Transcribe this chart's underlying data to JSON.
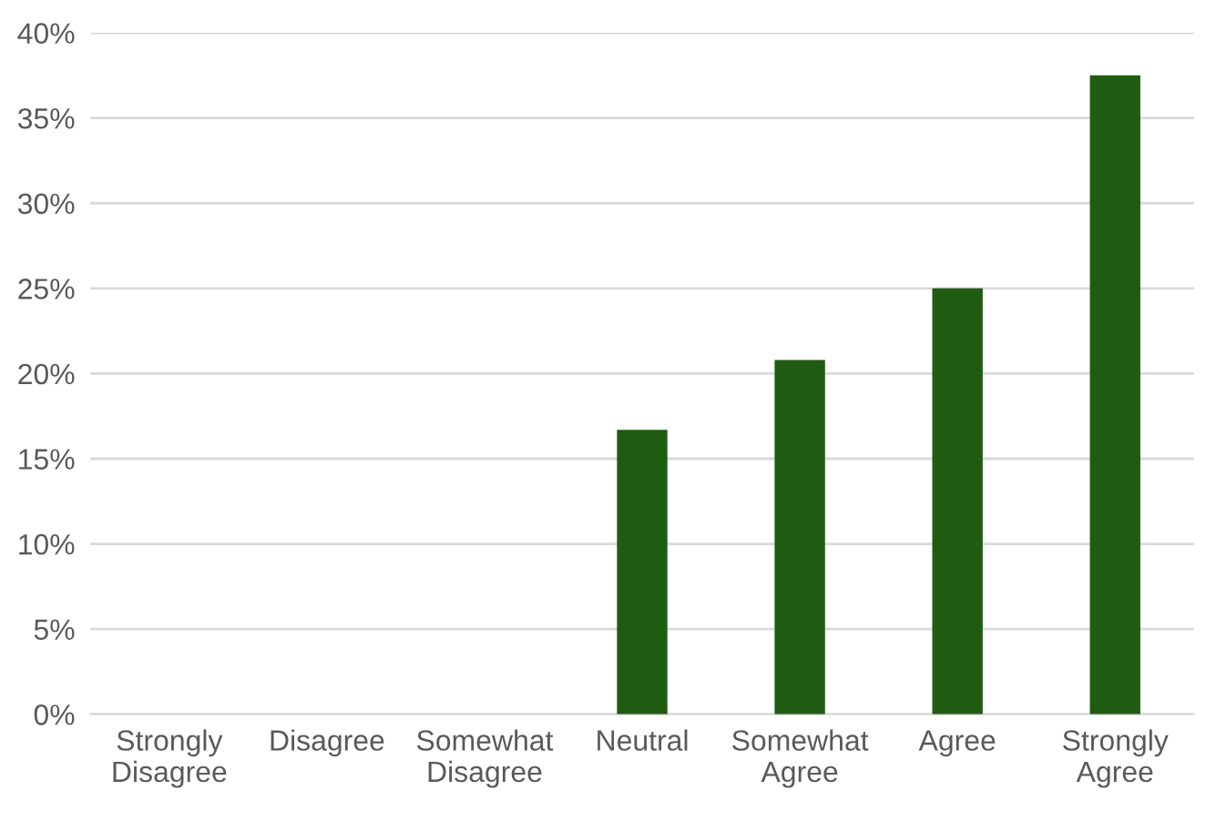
{
  "chart_data": {
    "type": "bar",
    "categories": [
      "Strongly\nDisagree",
      "Disagree",
      "Somewhat\nDisagree",
      "Neutral",
      "Somewhat\nAgree",
      "Agree",
      "Strongly\nAgree"
    ],
    "values": [
      0,
      0,
      0,
      16.7,
      20.8,
      25,
      37.5
    ],
    "color": "#1f5c11",
    "ylim": [
      0,
      40
    ],
    "yticks": [
      {
        "value": 0,
        "label": "0%"
      },
      {
        "value": 5,
        "label": "5%"
      },
      {
        "value": 10,
        "label": "10%"
      },
      {
        "value": 15,
        "label": "15%"
      },
      {
        "value": 20,
        "label": "20%"
      },
      {
        "value": 25,
        "label": "25%"
      },
      {
        "value": 30,
        "label": "30%"
      },
      {
        "value": 35,
        "label": "35%"
      },
      {
        "value": 40,
        "label": "40%"
      }
    ],
    "grid": "y",
    "legend": false
  }
}
